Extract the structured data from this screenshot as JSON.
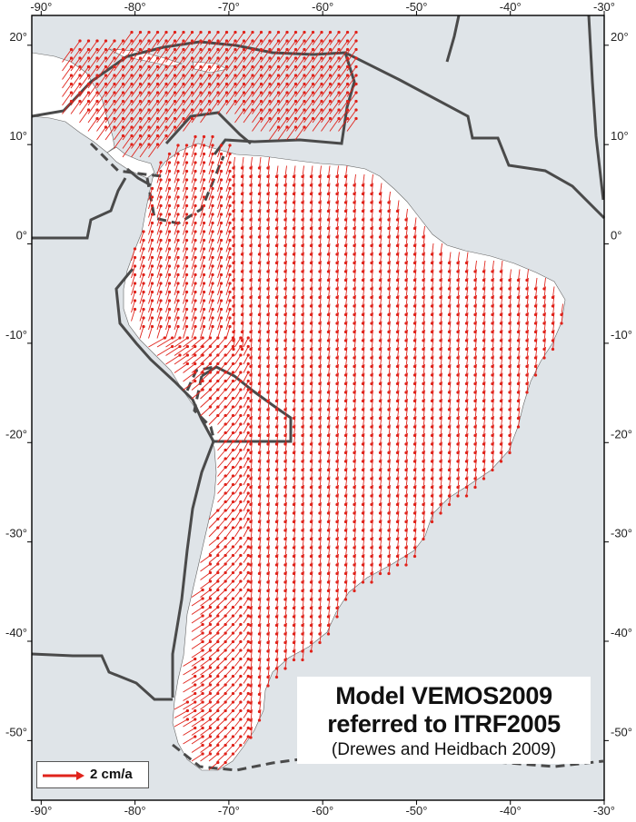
{
  "map": {
    "lon_ticks": [
      -90,
      -80,
      -70,
      -60,
      -50,
      -40,
      -30
    ],
    "lat_ticks": [
      20,
      10,
      0,
      -10,
      -20,
      -30,
      -40,
      -50
    ],
    "lon_labels": [
      "-90°",
      "-80°",
      "-70°",
      "-60°",
      "-50°",
      "-40°",
      "-30°"
    ],
    "lat_labels": [
      "20°",
      "10°",
      "0°",
      "-10°",
      "-20°",
      "-30°",
      "-40°",
      "-50°"
    ],
    "lon_range": [
      -91,
      -30
    ],
    "lat_range": [
      -56,
      23
    ],
    "colors": {
      "ocean": "#dfe4e8",
      "land": "#ffffff",
      "plate_boundary": "#4a4a4a",
      "vector": "#e0231b",
      "frame": "#000000"
    },
    "plate_boundaries_style": "solid and dashed dark grey lines",
    "velocity_field": "red arrows on a regular grid over South America and the Caribbean"
  },
  "title": {
    "line1": "Model VEMOS2009",
    "line2": "referred to ITRF2005",
    "citation": "(Drewes and Heidbach 2009)"
  },
  "legend": {
    "label": "2 cm/a",
    "icon": "red-arrow-icon"
  }
}
